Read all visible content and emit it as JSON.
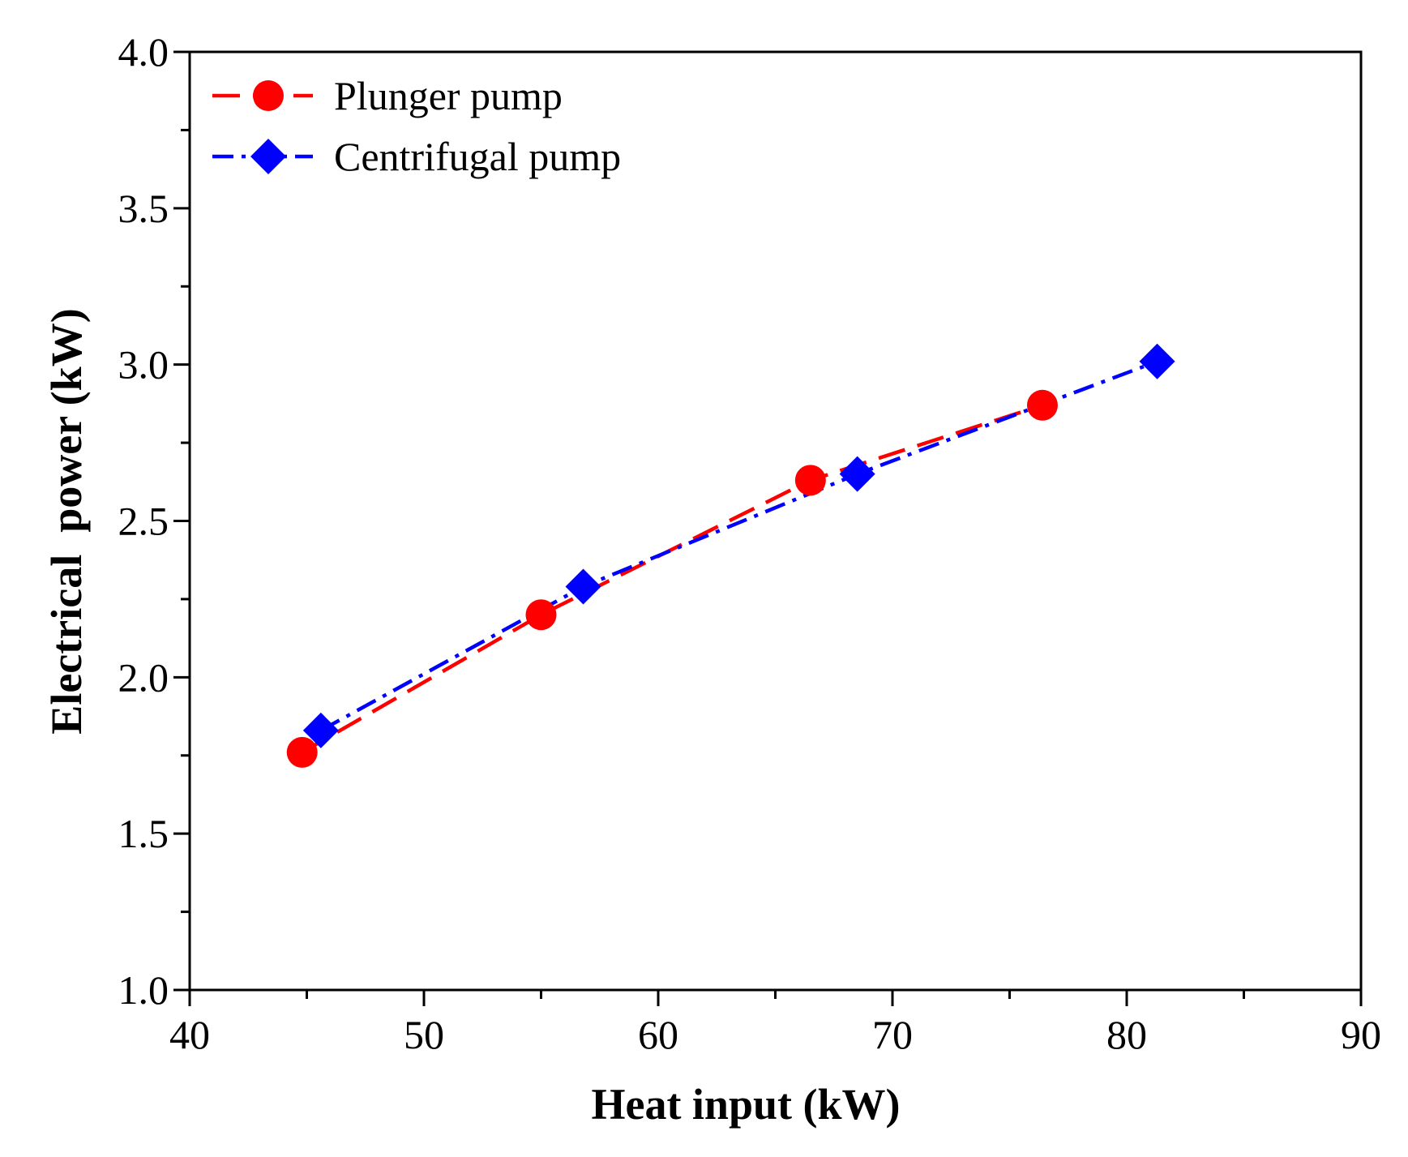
{
  "chart_data": {
    "type": "line",
    "xlabel": "Heat input (kW)",
    "ylabel": "Electrical  power (kW)",
    "xlim": [
      40,
      90
    ],
    "ylim": [
      1.0,
      4.0
    ],
    "x_ticks": [
      "40",
      "50",
      "60",
      "70",
      "80",
      "90"
    ],
    "y_ticks": [
      "1.0",
      "1.5",
      "2.0",
      "2.5",
      "3.0",
      "3.5",
      "4.0"
    ],
    "legend_position": "top-left",
    "series": [
      {
        "name": "Plunger pump",
        "color": "#ff0000",
        "marker": "circle",
        "line_style": "dash",
        "x": [
          44.8,
          55.0,
          66.5,
          76.4
        ],
        "y": [
          1.76,
          2.2,
          2.63,
          2.87
        ]
      },
      {
        "name": "Centrifugal pump",
        "color": "#0000ff",
        "marker": "diamond",
        "line_style": "dash-dot",
        "x": [
          45.6,
          56.8,
          68.5,
          81.3
        ],
        "y": [
          1.83,
          2.29,
          2.65,
          3.01
        ]
      }
    ]
  }
}
